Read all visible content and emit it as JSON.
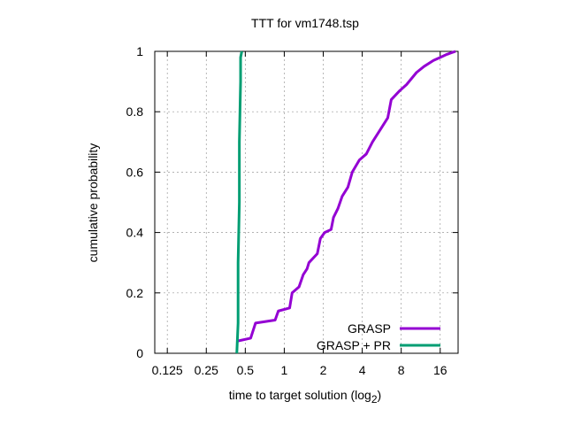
{
  "chart_data": {
    "type": "line",
    "title": "TTT for vm1748.tsp",
    "xlabel": "time to target solution (log",
    "xlabel_sub": "2",
    "xlabel_end": ")",
    "ylabel": "cumulative probability",
    "x_scale": "log2",
    "xlim": [
      0.1,
      22
    ],
    "ylim": [
      0,
      1
    ],
    "x_ticks": [
      0.125,
      0.25,
      0.5,
      1,
      2,
      4,
      8,
      16
    ],
    "x_tick_labels": [
      "0.125",
      "0.25",
      "0.5",
      "1",
      "2",
      "4",
      "8",
      "16"
    ],
    "y_ticks": [
      0,
      0.2,
      0.4,
      0.6,
      0.8,
      1
    ],
    "y_tick_labels": [
      "0",
      "0.2",
      "0.4",
      "0.6",
      "0.8",
      "1"
    ],
    "grid": true,
    "legend_position": "bottom-right",
    "series": [
      {
        "name": "GRASP",
        "color": "#9400d3",
        "points": [
          [
            0.43,
            0.04
          ],
          [
            0.55,
            0.05
          ],
          [
            0.6,
            0.1
          ],
          [
            0.85,
            0.11
          ],
          [
            0.9,
            0.14
          ],
          [
            1.1,
            0.15
          ],
          [
            1.15,
            0.2
          ],
          [
            1.3,
            0.22
          ],
          [
            1.4,
            0.26
          ],
          [
            1.5,
            0.28
          ],
          [
            1.55,
            0.3
          ],
          [
            1.8,
            0.33
          ],
          [
            1.9,
            0.38
          ],
          [
            2.05,
            0.4
          ],
          [
            2.3,
            0.41
          ],
          [
            2.4,
            0.45
          ],
          [
            2.6,
            0.48
          ],
          [
            2.8,
            0.52
          ],
          [
            3.1,
            0.55
          ],
          [
            3.35,
            0.6
          ],
          [
            3.8,
            0.64
          ],
          [
            4.3,
            0.66
          ],
          [
            4.8,
            0.7
          ],
          [
            5.5,
            0.74
          ],
          [
            6.3,
            0.78
          ],
          [
            6.7,
            0.84
          ],
          [
            7.8,
            0.87
          ],
          [
            8.8,
            0.89
          ],
          [
            10.5,
            0.93
          ],
          [
            12,
            0.95
          ],
          [
            14.2,
            0.97
          ],
          [
            16,
            0.98
          ],
          [
            18,
            0.99
          ],
          [
            21,
            1.0
          ]
        ]
      },
      {
        "name": "GRASP + PR",
        "color": "#009e73",
        "points": [
          [
            0.43,
            0.0
          ],
          [
            0.44,
            0.1
          ],
          [
            0.44,
            0.3
          ],
          [
            0.45,
            0.5
          ],
          [
            0.45,
            0.7
          ],
          [
            0.46,
            0.9
          ],
          [
            0.46,
            0.98
          ],
          [
            0.47,
            1.0
          ]
        ]
      }
    ]
  }
}
